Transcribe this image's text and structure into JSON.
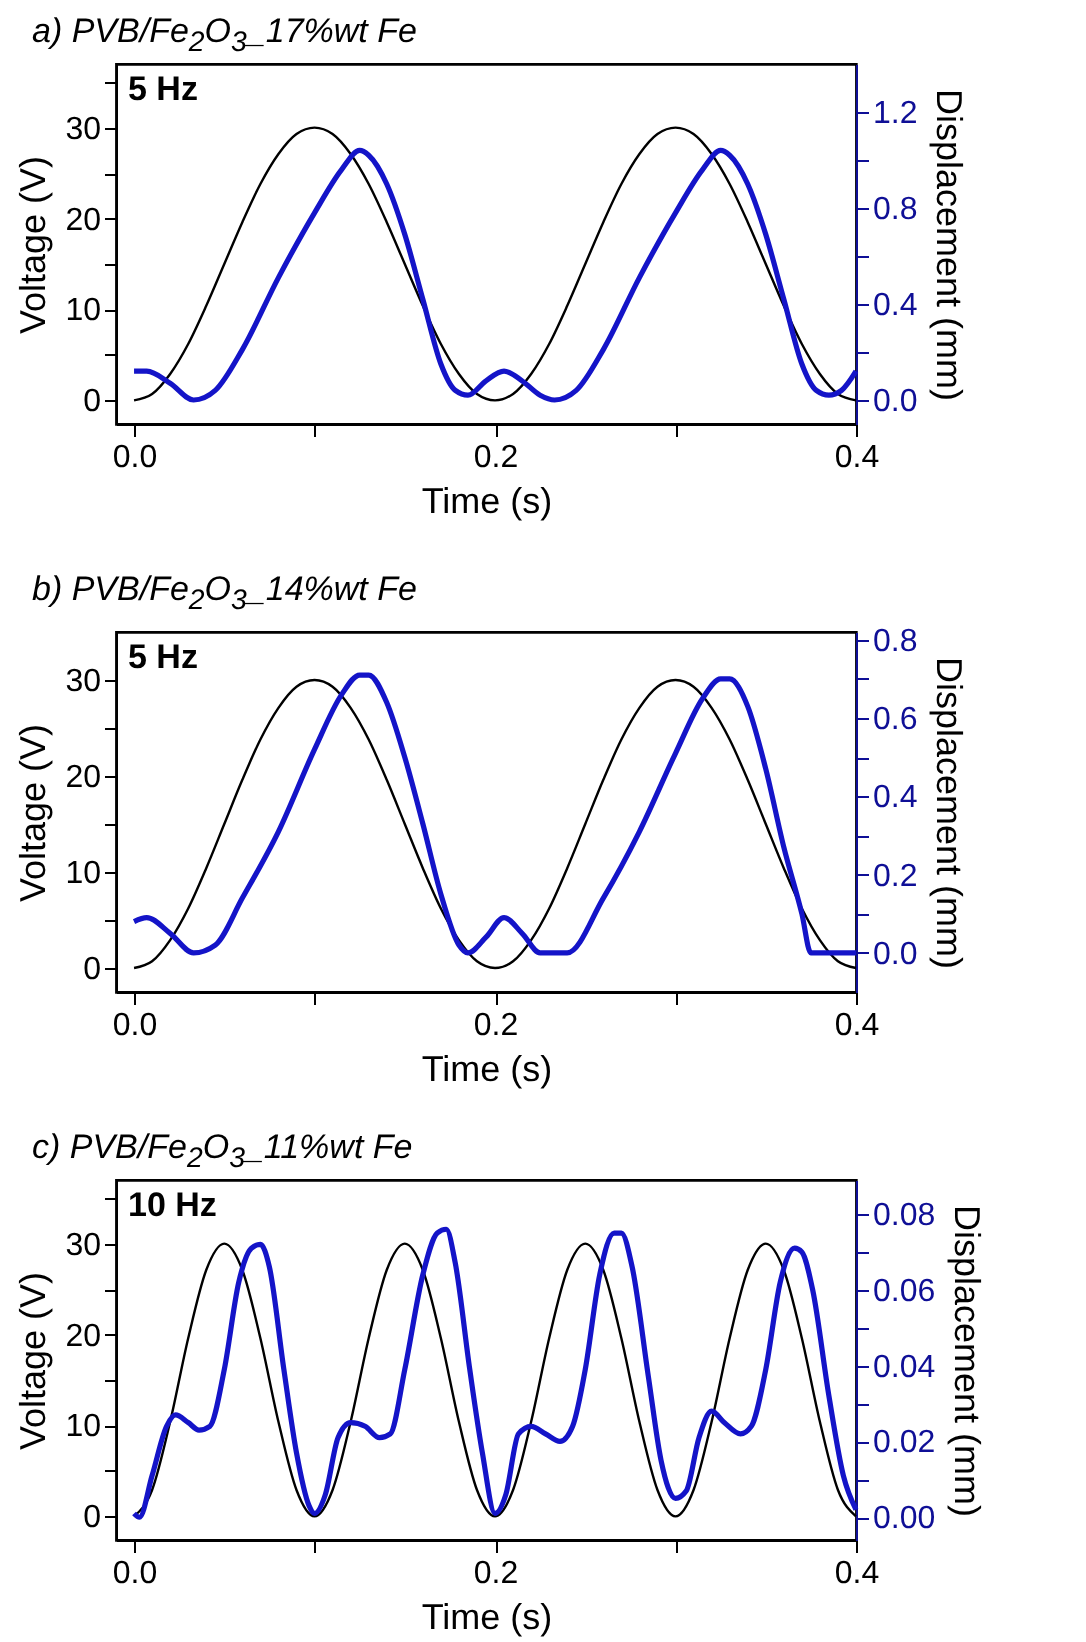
{
  "chart_data": [
    {
      "type": "line",
      "title": "a) PVB/Fe$_{2}$O$_{3}$_17%wt Fe",
      "xlabel": "Time (s)",
      "ylabel": "Voltage (V)",
      "y2label": "Displacement (mm)",
      "annotations": [
        "5 Hz"
      ],
      "xlim": [
        -0.01,
        0.4
      ],
      "xticks": [
        {
          "value": 0,
          "label": "0.0"
        },
        {
          "value": 0.1,
          "label": null
        },
        {
          "value": 0.2,
          "label": "0.2"
        },
        {
          "value": 0.3,
          "label": null
        },
        {
          "value": 0.4,
          "label": "0.4"
        }
      ],
      "ylim": [
        -2.6,
        37
      ],
      "yticks": [
        0,
        {
          "value": 5,
          "label": null
        },
        10,
        {
          "value": 15,
          "label": null
        },
        20,
        {
          "value": 25,
          "label": null
        },
        30,
        {
          "value": 35,
          "label": null
        }
      ],
      "y2lim": [
        -0.1,
        1.4
      ],
      "y2ticks": [
        {
          "value": 0,
          "label": "0.0"
        },
        {
          "value": 0.2,
          "label": null
        },
        0.4,
        {
          "value": 0.6,
          "label": null
        },
        0.8,
        {
          "value": 1.0,
          "label": null
        },
        1.2
      ],
      "marker": "none",
      "line_style": "solid",
      "series": [
        {
          "color": "#000000",
          "x": [
            0,
            0.01,
            0.02,
            0.03,
            0.04,
            0.05,
            0.06,
            0.07,
            0.08,
            0.09,
            0.1,
            0.11,
            0.12,
            0.13,
            0.14,
            0.15,
            0.16,
            0.17,
            0.18,
            0.19,
            0.2,
            0.21,
            0.22,
            0.23,
            0.24,
            0.25,
            0.26,
            0.27,
            0.28,
            0.29,
            0.3,
            0.31,
            0.32,
            0.33,
            0.34,
            0.35,
            0.36,
            0.37,
            0.38,
            0.39,
            0.4
          ],
          "values": [
            0,
            0.7,
            2.9,
            6.2,
            10.4,
            15,
            19.6,
            23.8,
            27.1,
            29.3,
            30,
            29.3,
            27.1,
            23.8,
            19.6,
            15,
            10.4,
            6.2,
            2.9,
            0.7,
            0,
            0.7,
            2.9,
            6.2,
            10.4,
            15,
            19.6,
            23.8,
            27.1,
            29.3,
            30,
            29.3,
            27.1,
            23.8,
            19.6,
            15,
            10.4,
            6.2,
            2.9,
            0.7,
            0
          ]
        },
        {
          "color": "#1414c8",
          "axis": "y2",
          "x": [
            0,
            0.007,
            0.02,
            0.033,
            0.045,
            0.06,
            0.08,
            0.1,
            0.115,
            0.125,
            0.13,
            0.14,
            0.15,
            0.16,
            0.17,
            0.178,
            0.185,
            0.195,
            0.205,
            0.215,
            0.225,
            0.233,
            0.245,
            0.26,
            0.28,
            0.3,
            0.315,
            0.325,
            0.33,
            0.34,
            0.35,
            0.36,
            0.37,
            0.378,
            0.385,
            0.392,
            0.4
          ],
          "values": [
            0.12,
            0.12,
            0.07,
            0.0,
            0.04,
            0.21,
            0.51,
            0.78,
            0.96,
            1.04,
            1.02,
            0.9,
            0.69,
            0.42,
            0.15,
            0.04,
            0.02,
            0.08,
            0.12,
            0.08,
            0.02,
            0.0,
            0.04,
            0.21,
            0.51,
            0.78,
            0.96,
            1.04,
            1.02,
            0.9,
            0.69,
            0.42,
            0.15,
            0.04,
            0.02,
            0.04,
            0.12
          ]
        }
      ]
    },
    {
      "type": "line",
      "title": "b) PVB/Fe$_{2}$O$_{3}$_14%wt Fe",
      "xlabel": "Time (s)",
      "ylabel": "Voltage (V)",
      "y2label": "Displacement (mm)",
      "annotations": [
        "5 Hz"
      ],
      "xlim": [
        -0.01,
        0.4
      ],
      "xticks": [
        {
          "value": 0,
          "label": "0.0"
        },
        {
          "value": 0.1,
          "label": null
        },
        {
          "value": 0.2,
          "label": "0.2"
        },
        {
          "value": 0.3,
          "label": null
        },
        {
          "value": 0.4,
          "label": "0.4"
        }
      ],
      "ylim": [
        -2.5,
        35
      ],
      "yticks": [
        0,
        {
          "value": 5,
          "label": null
        },
        10,
        {
          "value": 15,
          "label": null
        },
        20,
        {
          "value": 25,
          "label": null
        },
        30
      ],
      "y2lim": [
        -0.1,
        0.82
      ],
      "y2ticks": [
        {
          "value": 0,
          "label": "0.0"
        },
        {
          "value": 0.1,
          "label": null
        },
        0.2,
        {
          "value": 0.3,
          "label": null
        },
        0.4,
        {
          "value": 0.5,
          "label": null
        },
        0.6,
        {
          "value": 0.7,
          "label": null
        },
        0.8
      ],
      "marker": "none",
      "line_style": "solid",
      "series": [
        {
          "color": "#000000",
          "x": [
            0,
            0.01,
            0.02,
            0.03,
            0.04,
            0.05,
            0.06,
            0.07,
            0.08,
            0.09,
            0.1,
            0.11,
            0.12,
            0.13,
            0.14,
            0.15,
            0.16,
            0.17,
            0.18,
            0.19,
            0.2,
            0.21,
            0.22,
            0.23,
            0.24,
            0.25,
            0.26,
            0.27,
            0.28,
            0.29,
            0.3,
            0.31,
            0.32,
            0.33,
            0.34,
            0.35,
            0.36,
            0.37,
            0.38,
            0.39,
            0.4
          ],
          "values": [
            0,
            0.7,
            2.9,
            6.2,
            10.4,
            15,
            19.6,
            23.8,
            27.1,
            29.3,
            30,
            29.3,
            27.1,
            23.8,
            19.6,
            15,
            10.4,
            6.2,
            2.9,
            0.7,
            0,
            0.7,
            2.9,
            6.2,
            10.4,
            15,
            19.6,
            23.8,
            27.1,
            29.3,
            30,
            29.3,
            27.1,
            23.8,
            19.6,
            15,
            10.4,
            6.2,
            2.9,
            0.7,
            0
          ]
        },
        {
          "color": "#1414c8",
          "axis": "y2",
          "x": [
            0,
            0.007,
            0.02,
            0.033,
            0.045,
            0.06,
            0.08,
            0.1,
            0.115,
            0.125,
            0.13,
            0.14,
            0.15,
            0.16,
            0.17,
            0.18,
            0.185,
            0.195,
            0.205,
            0.215,
            0.225,
            0.24,
            0.26,
            0.28,
            0.3,
            0.315,
            0.325,
            0.33,
            0.34,
            0.35,
            0.36,
            0.37,
            0.375,
            0.385,
            0.4
          ],
          "values": [
            0.08,
            0.09,
            0.05,
            0.0,
            0.02,
            0.14,
            0.31,
            0.52,
            0.66,
            0.71,
            0.71,
            0.64,
            0.5,
            0.33,
            0.15,
            0.02,
            0.0,
            0.04,
            0.09,
            0.05,
            0.0,
            0.0,
            0.14,
            0.31,
            0.51,
            0.65,
            0.7,
            0.7,
            0.63,
            0.47,
            0.27,
            0.1,
            0.0,
            0.0,
            0.0
          ]
        }
      ]
    },
    {
      "type": "line",
      "title": "c) PVB/Fe$_{2}$O$_{3}$_11%wt Fe",
      "xlabel": "Time (s)",
      "ylabel": "Voltage (V)",
      "y2label": "Displacement (mm)",
      "annotations": [
        "10 Hz"
      ],
      "xlim": [
        -0.01,
        0.4
      ],
      "xticks": [
        {
          "value": 0,
          "label": "0.0"
        },
        {
          "value": 0.1,
          "label": null
        },
        {
          "value": 0.2,
          "label": "0.2"
        },
        {
          "value": 0.3,
          "label": null
        },
        {
          "value": 0.4,
          "label": "0.4"
        }
      ],
      "ylim": [
        -2.6,
        37
      ],
      "yticks": [
        0,
        {
          "value": 5,
          "label": null
        },
        10,
        {
          "value": 15,
          "label": null
        },
        20,
        {
          "value": 25,
          "label": null
        },
        30,
        {
          "value": 35,
          "label": null
        }
      ],
      "y2lim": [
        -0.006,
        0.089
      ],
      "y2ticks": [
        {
          "value": 0,
          "label": "0.00"
        },
        {
          "value": 0.01,
          "label": null
        },
        {
          "value": 0.02,
          "label": "0.02"
        },
        {
          "value": 0.03,
          "label": null
        },
        {
          "value": 0.04,
          "label": "0.04"
        },
        {
          "value": 0.05,
          "label": null
        },
        {
          "value": 0.06,
          "label": "0.06"
        },
        {
          "value": 0.07,
          "label": null
        },
        {
          "value": 0.08,
          "label": "0.08"
        }
      ],
      "marker": "none",
      "line_style": "solid",
      "series": [
        {
          "color": "#000000",
          "x": [
            0,
            0.01,
            0.02,
            0.03,
            0.04,
            0.05,
            0.06,
            0.07,
            0.08,
            0.09,
            0.1,
            0.11,
            0.12,
            0.13,
            0.14,
            0.15,
            0.16,
            0.17,
            0.18,
            0.19,
            0.2,
            0.21,
            0.22,
            0.23,
            0.24,
            0.25,
            0.26,
            0.27,
            0.28,
            0.29,
            0.3,
            0.31,
            0.32,
            0.33,
            0.34,
            0.35,
            0.36,
            0.37,
            0.38,
            0.39,
            0.4
          ],
          "values": [
            0,
            2.9,
            10.4,
            19.6,
            27.1,
            30,
            27.1,
            19.6,
            10.4,
            2.9,
            0,
            2.9,
            10.4,
            19.6,
            27.1,
            30,
            27.1,
            19.6,
            10.4,
            2.9,
            0,
            2.9,
            10.4,
            19.6,
            27.1,
            30,
            27.1,
            19.6,
            10.4,
            2.9,
            0,
            2.9,
            10.4,
            19.6,
            27.1,
            30,
            27.1,
            19.6,
            10.4,
            2.9,
            0
          ]
        },
        {
          "color": "#1414c8",
          "axis": "y2",
          "x": [
            0,
            0.003,
            0.01,
            0.018,
            0.023,
            0.03,
            0.036,
            0.042,
            0.05,
            0.058,
            0.065,
            0.07,
            0.075,
            0.083,
            0.09,
            0.097,
            0.1,
            0.106,
            0.113,
            0.12,
            0.128,
            0.136,
            0.142,
            0.15,
            0.16,
            0.168,
            0.173,
            0.178,
            0.186,
            0.193,
            0.2,
            0.206,
            0.213,
            0.22,
            0.228,
            0.236,
            0.243,
            0.25,
            0.258,
            0.266,
            0.27,
            0.276,
            0.285,
            0.292,
            0.3,
            0.306,
            0.313,
            0.32,
            0.327,
            0.336,
            0.342,
            0.35,
            0.358,
            0.366,
            0.37,
            0.376,
            0.385,
            0.393,
            0.4
          ],
          "values": [
            0.001,
            0.0,
            0.011,
            0.024,
            0.027,
            0.025,
            0.023,
            0.024,
            0.039,
            0.062,
            0.071,
            0.072,
            0.066,
            0.039,
            0.017,
            0.003,
            0.001,
            0.006,
            0.021,
            0.025,
            0.024,
            0.021,
            0.022,
            0.039,
            0.064,
            0.075,
            0.076,
            0.067,
            0.039,
            0.017,
            0.001,
            0.006,
            0.022,
            0.024,
            0.022,
            0.02,
            0.024,
            0.039,
            0.064,
            0.075,
            0.075,
            0.066,
            0.037,
            0.015,
            0.005,
            0.007,
            0.021,
            0.028,
            0.025,
            0.022,
            0.024,
            0.039,
            0.062,
            0.071,
            0.07,
            0.06,
            0.032,
            0.011,
            0.002
          ]
        }
      ]
    }
  ]
}
